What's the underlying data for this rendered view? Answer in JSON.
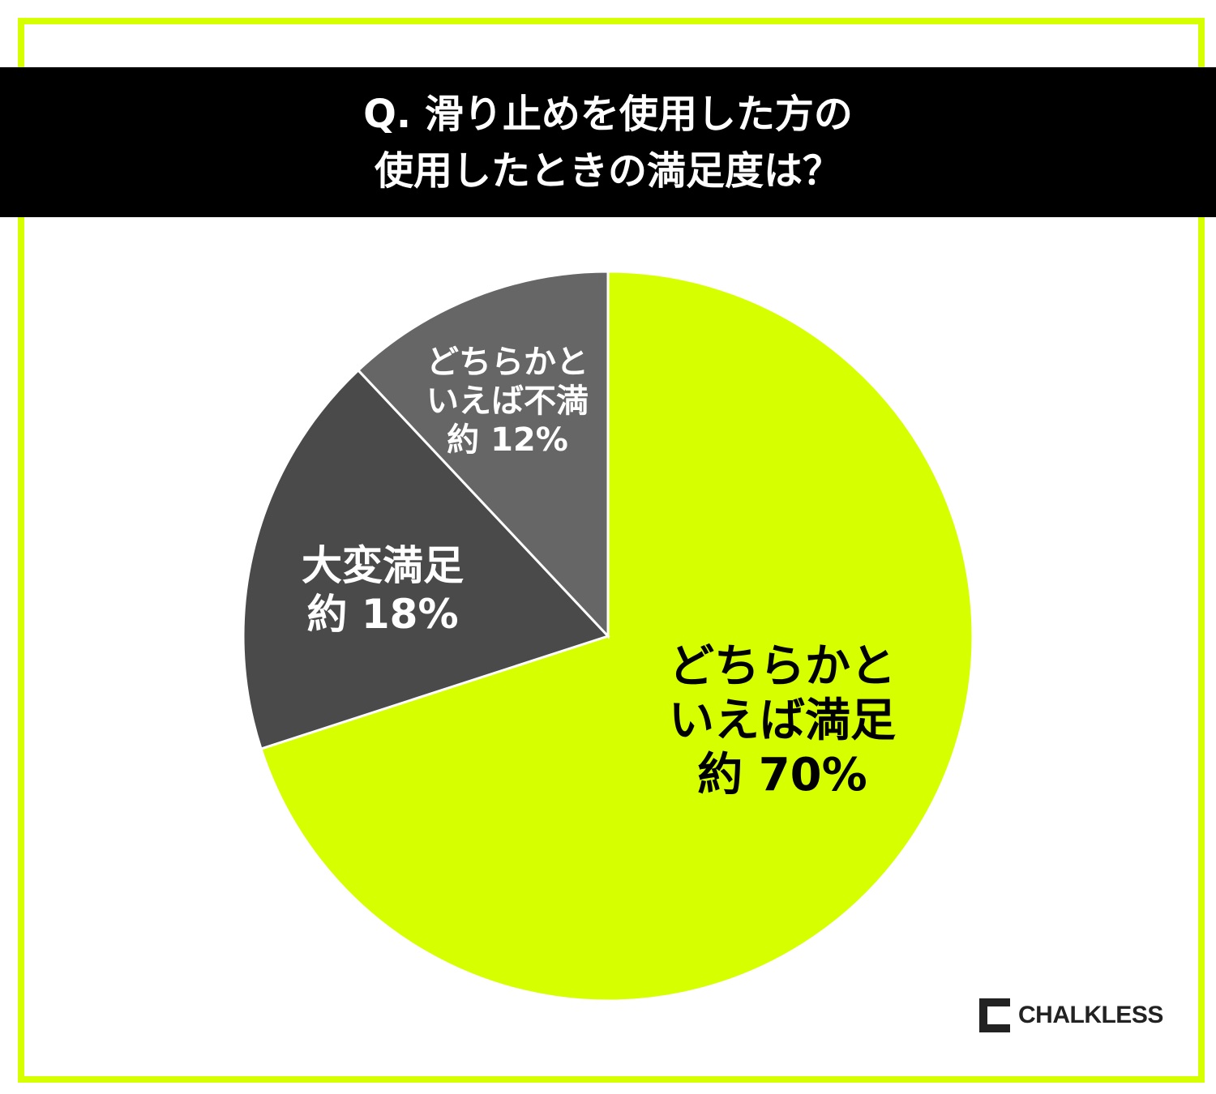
{
  "chart_data": {
    "type": "pie",
    "title": "Q. 滑り止めを使用した方の\n使用したときの満足度は？",
    "categories": [
      "どちらかと\nいえば満足",
      "大変満足",
      "どちらかと\nいえば不満"
    ],
    "values": [
      70,
      18,
      12
    ],
    "value_labels": [
      "約 70%",
      "約 18%",
      "約 12%"
    ],
    "colors": [
      "#d6ff00",
      "#4a4a4a",
      "#666666"
    ]
  },
  "logo": "CHALKLESS"
}
